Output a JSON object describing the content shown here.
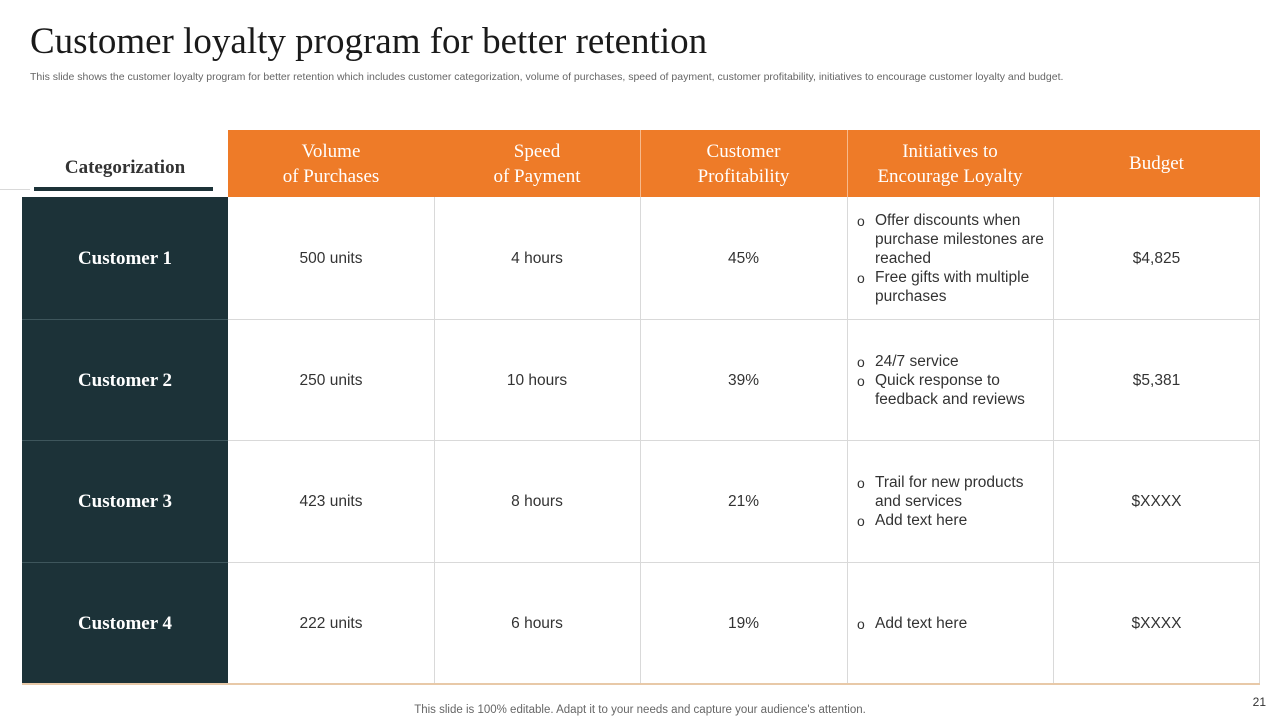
{
  "title": "Customer loyalty program for better retention",
  "subtitle": "This slide shows the customer loyalty program for better retention which includes customer categorization, volume of purchases, speed of payment, customer profitability, initiatives to encourage customer loyalty and budget.",
  "table": {
    "categorization_header": "Categorization",
    "headers": [
      {
        "line1": "Volume",
        "line2": "of Purchases"
      },
      {
        "line1": "Speed",
        "line2": "of Payment"
      },
      {
        "line1": "Customer",
        "line2": "Profitability"
      },
      {
        "line1": "Initiatives to",
        "line2": "Encourage Loyalty"
      },
      {
        "line1": "Budget",
        "line2": ""
      }
    ],
    "rows": [
      {
        "customer": "Customer 1",
        "volume": "500 units",
        "speed": "4 hours",
        "profitability": "45%",
        "initiatives": [
          "Offer discounts when purchase milestones are reached",
          "Free gifts with multiple purchases"
        ],
        "budget": "$4,825"
      },
      {
        "customer": "Customer 2",
        "volume": "250 units",
        "speed": "10 hours",
        "profitability": "39%",
        "initiatives": [
          "24/7 service",
          "Quick response to feedback and reviews"
        ],
        "budget": "$5,381"
      },
      {
        "customer": "Customer 3",
        "volume": "423 units",
        "speed": "8 hours",
        "profitability": "21%",
        "initiatives": [
          "Trail for new products and services",
          "Add text here"
        ],
        "budget": "$XXXX"
      },
      {
        "customer": "Customer 4",
        "volume": "222 units",
        "speed": "6 hours",
        "profitability": "19%",
        "initiatives": [
          "Add text here"
        ],
        "budget": "$XXXX"
      }
    ],
    "bullet_glyph": "o"
  },
  "footer": "This slide is 100% editable. Adapt it to your needs and capture your audience's attention.",
  "page_number": "21",
  "colors": {
    "accent": "#ee7b28",
    "dark": "#1c3238"
  }
}
